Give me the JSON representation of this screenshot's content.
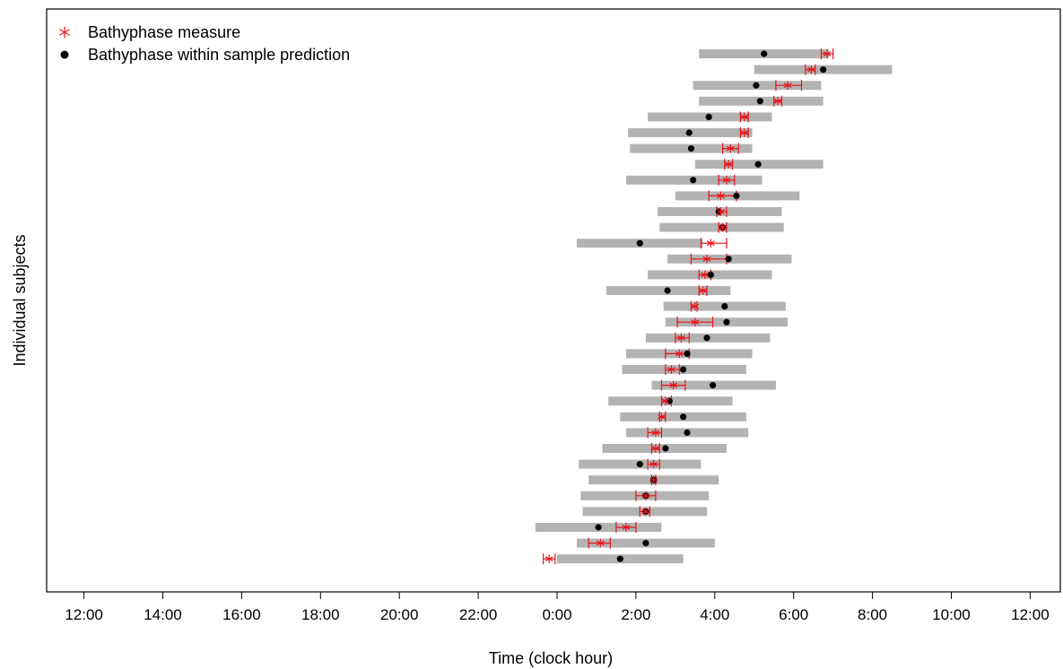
{
  "chart_data": {
    "type": "interval-dot-plot",
    "title": "",
    "xlabel": "Time (clock hour)",
    "ylabel": "Individual subjects",
    "x_unit": "hours relative to 0:00 (negative = previous day)",
    "xlim": [
      -12.9,
      12.9
    ],
    "x_ticks": [
      -12,
      -10,
      -8,
      -6,
      -4,
      -2,
      0,
      2,
      4,
      6,
      8,
      10,
      12
    ],
    "x_tick_labels": [
      "12:00",
      "14:00",
      "16:00",
      "18:00",
      "20:00",
      "22:00",
      "0:00",
      "2:00",
      "4:00",
      "6:00",
      "8:00",
      "10:00",
      "12:00"
    ],
    "grid": false,
    "legend_position": "top-left",
    "legend": [
      {
        "label": "Bathyphase measure",
        "marker": "asterisk",
        "color": "#e8141b"
      },
      {
        "label": "Bathyphase within sample prediction",
        "marker": "dot",
        "color": "#000000"
      }
    ],
    "colors": {
      "interval": "#b3b3b3",
      "measure": "#e8141b",
      "prediction": "#000000"
    },
    "subjects": [
      {
        "pred_lo": 3.6,
        "pred_hi": 6.9,
        "pred": 5.25,
        "meas": 6.85,
        "meas_lo": 6.7,
        "meas_hi": 7.0
      },
      {
        "pred_lo": 5.0,
        "pred_hi": 8.5,
        "pred": 6.75,
        "meas": 6.45,
        "meas_lo": 6.3,
        "meas_hi": 6.55
      },
      {
        "pred_lo": 3.45,
        "pred_hi": 6.7,
        "pred": 5.05,
        "meas": 5.85,
        "meas_lo": 5.55,
        "meas_hi": 6.2
      },
      {
        "pred_lo": 3.6,
        "pred_hi": 6.75,
        "pred": 5.15,
        "meas": 5.6,
        "meas_lo": 5.5,
        "meas_hi": 5.7
      },
      {
        "pred_lo": 2.3,
        "pred_hi": 5.45,
        "pred": 3.85,
        "meas": 4.75,
        "meas_lo": 4.65,
        "meas_hi": 4.85
      },
      {
        "pred_lo": 1.8,
        "pred_hi": 4.95,
        "pred": 3.35,
        "meas": 4.75,
        "meas_lo": 4.65,
        "meas_hi": 4.85
      },
      {
        "pred_lo": 1.85,
        "pred_hi": 4.95,
        "pred": 3.4,
        "meas": 4.4,
        "meas_lo": 4.2,
        "meas_hi": 4.6
      },
      {
        "pred_lo": 3.5,
        "pred_hi": 6.75,
        "pred": 5.1,
        "meas": 4.35,
        "meas_lo": 4.25,
        "meas_hi": 4.45
      },
      {
        "pred_lo": 1.75,
        "pred_hi": 5.2,
        "pred": 3.45,
        "meas": 4.3,
        "meas_lo": 4.1,
        "meas_hi": 4.5
      },
      {
        "pred_lo": 3.0,
        "pred_hi": 6.15,
        "pred": 4.55,
        "meas": 4.15,
        "meas_lo": 3.85,
        "meas_hi": 4.55
      },
      {
        "pred_lo": 2.55,
        "pred_hi": 5.7,
        "pred": 4.1,
        "meas": 4.15,
        "meas_lo": 4.05,
        "meas_hi": 4.3
      },
      {
        "pred_lo": 2.6,
        "pred_hi": 5.75,
        "pred": 4.2,
        "meas": 4.2,
        "meas_lo": 4.1,
        "meas_hi": 4.3
      },
      {
        "pred_lo": 0.5,
        "pred_hi": 3.7,
        "pred": 2.1,
        "meas": 3.9,
        "meas_lo": 3.65,
        "meas_hi": 4.3
      },
      {
        "pred_lo": 2.8,
        "pred_hi": 5.95,
        "pred": 4.35,
        "meas": 3.8,
        "meas_lo": 3.4,
        "meas_hi": 4.3
      },
      {
        "pred_lo": 2.3,
        "pred_hi": 5.45,
        "pred": 3.9,
        "meas": 3.75,
        "meas_lo": 3.6,
        "meas_hi": 3.9
      },
      {
        "pred_lo": 1.25,
        "pred_hi": 4.4,
        "pred": 2.8,
        "meas": 3.7,
        "meas_lo": 3.6,
        "meas_hi": 3.8
      },
      {
        "pred_lo": 2.7,
        "pred_hi": 5.8,
        "pred": 4.25,
        "meas": 3.5,
        "meas_lo": 3.4,
        "meas_hi": 3.55
      },
      {
        "pred_lo": 2.75,
        "pred_hi": 5.85,
        "pred": 4.3,
        "meas": 3.5,
        "meas_lo": 3.05,
        "meas_hi": 3.95
      },
      {
        "pred_lo": 2.25,
        "pred_hi": 5.4,
        "pred": 3.8,
        "meas": 3.15,
        "meas_lo": 3.0,
        "meas_hi": 3.35
      },
      {
        "pred_lo": 1.75,
        "pred_hi": 4.95,
        "pred": 3.3,
        "meas": 3.1,
        "meas_lo": 2.75,
        "meas_hi": 3.35
      },
      {
        "pred_lo": 1.65,
        "pred_hi": 4.8,
        "pred": 3.2,
        "meas": 2.9,
        "meas_lo": 2.75,
        "meas_hi": 3.1
      },
      {
        "pred_lo": 2.4,
        "pred_hi": 5.55,
        "pred": 3.95,
        "meas": 2.95,
        "meas_lo": 2.65,
        "meas_hi": 3.25
      },
      {
        "pred_lo": 1.3,
        "pred_hi": 4.45,
        "pred": 2.85,
        "meas": 2.75,
        "meas_lo": 2.65,
        "meas_hi": 2.9
      },
      {
        "pred_lo": 1.6,
        "pred_hi": 4.8,
        "pred": 3.2,
        "meas": 2.65,
        "meas_lo": 2.6,
        "meas_hi": 2.75
      },
      {
        "pred_lo": 1.75,
        "pred_hi": 4.85,
        "pred": 3.3,
        "meas": 2.5,
        "meas_lo": 2.3,
        "meas_hi": 2.65
      },
      {
        "pred_lo": 1.15,
        "pred_hi": 4.3,
        "pred": 2.75,
        "meas": 2.5,
        "meas_lo": 2.4,
        "meas_hi": 2.6
      },
      {
        "pred_lo": 0.55,
        "pred_hi": 3.65,
        "pred": 2.1,
        "meas": 2.45,
        "meas_lo": 2.3,
        "meas_hi": 2.6
      },
      {
        "pred_lo": 0.8,
        "pred_hi": 4.1,
        "pred": 2.45,
        "meas": 2.45,
        "meas_lo": 2.4,
        "meas_hi": 2.5
      },
      {
        "pred_lo": 0.6,
        "pred_hi": 3.85,
        "pred": 2.25,
        "meas": 2.25,
        "meas_lo": 2.0,
        "meas_hi": 2.5
      },
      {
        "pred_lo": 0.65,
        "pred_hi": 3.8,
        "pred": 2.25,
        "meas": 2.25,
        "meas_lo": 2.1,
        "meas_hi": 2.35
      },
      {
        "pred_lo": -0.55,
        "pred_hi": 2.65,
        "pred": 1.05,
        "meas": 1.75,
        "meas_lo": 1.5,
        "meas_hi": 2.0
      },
      {
        "pred_lo": 0.5,
        "pred_hi": 4.0,
        "pred": 2.25,
        "meas": 1.1,
        "meas_lo": 0.8,
        "meas_hi": 1.35
      },
      {
        "pred_lo": 0.0,
        "pred_hi": 3.2,
        "pred": 1.6,
        "meas": -0.2,
        "meas_lo": -0.35,
        "meas_hi": -0.05
      }
    ]
  }
}
